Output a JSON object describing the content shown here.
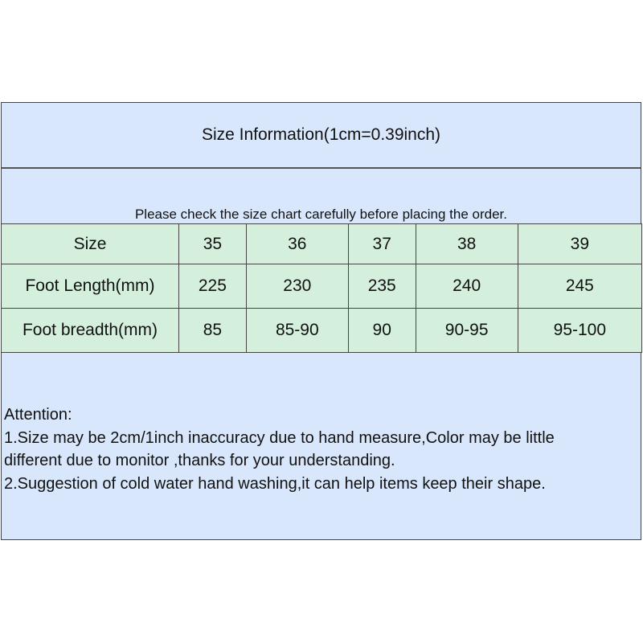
{
  "title": "Size Information(1cm=0.39inch)",
  "note": "Please check the size chart carefully before placing the order.",
  "table": {
    "rows": [
      [
        "Size",
        "35",
        "36",
        "37",
        "38",
        "39"
      ],
      [
        "Foot Length(mm)",
        "225",
        "230",
        "235",
        "240",
        "245"
      ],
      [
        "Foot breadth(mm)",
        "85",
        "85-90",
        "90",
        "90-95",
        "95-100"
      ]
    ]
  },
  "attention": {
    "heading": "Attention:",
    "lines": [
      "1.Size may be 2cm/1inch inaccuracy due to hand measure,Color may be little",
      "different due to monitor ,thanks for your understanding.",
      "2.Suggestion of cold water hand washing,it can help items keep their shape."
    ]
  },
  "colors": {
    "header_bg": "#d9e7fc",
    "table_bg": "#d4f0dc"
  }
}
